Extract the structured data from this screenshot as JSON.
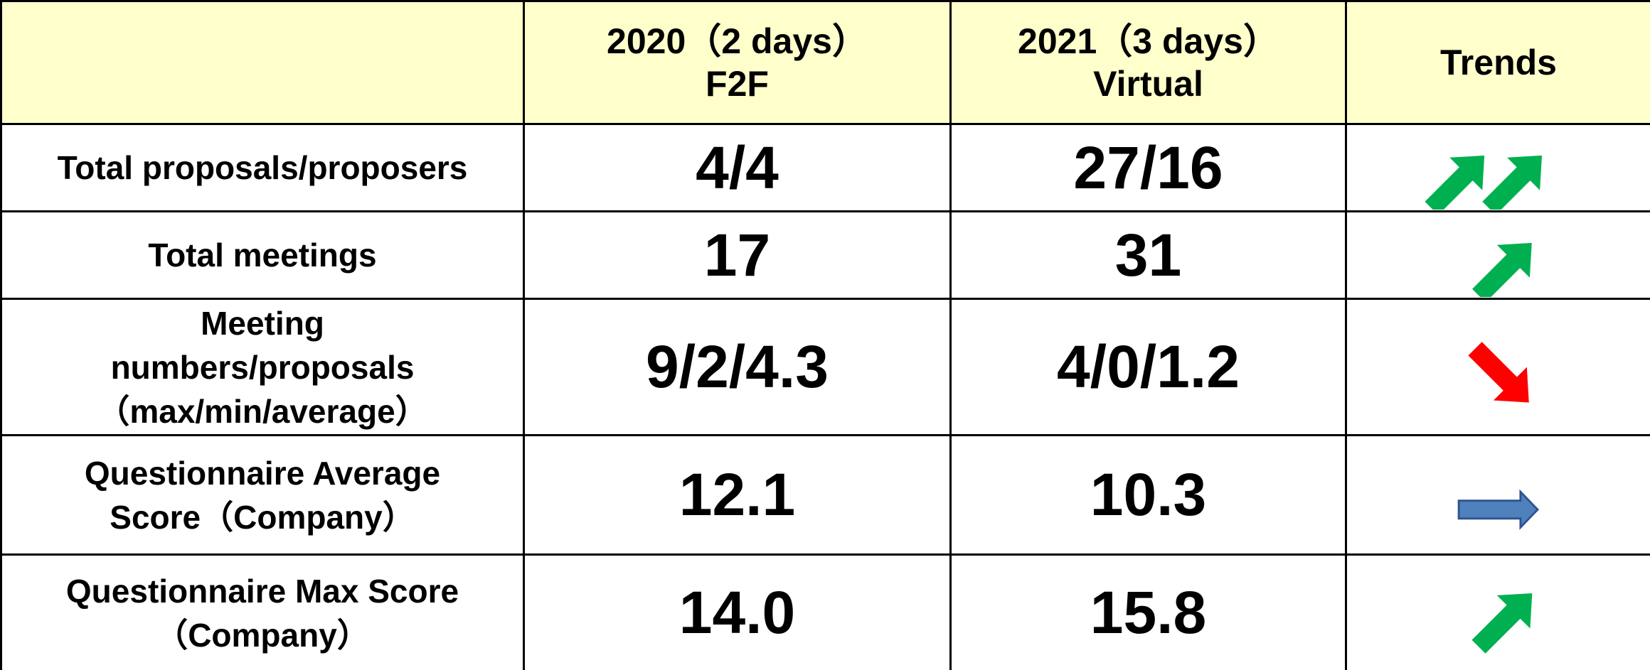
{
  "table": {
    "columns": [
      {
        "lines": [
          "2020（2 days）",
          "F2F"
        ]
      },
      {
        "lines": [
          "2021（3 days）",
          "Virtual"
        ]
      },
      {
        "lines": [
          "Trends"
        ]
      }
    ],
    "rows": [
      {
        "label": [
          "Total proposals/proposers"
        ],
        "values": [
          "4/4",
          "27/16"
        ]
      },
      {
        "label": [
          "Total meetings"
        ],
        "values": [
          "17",
          "31"
        ]
      },
      {
        "label": [
          "Meeting",
          "numbers/proposals",
          "（max/min/average）"
        ],
        "values": [
          "9/2/4.3",
          "4/0/1.2"
        ]
      },
      {
        "label": [
          "Questionnaire Average",
          "Score（Company）"
        ],
        "values": [
          "12.1",
          "10.3"
        ]
      },
      {
        "label": [
          "Questionnaire Max Score",
          "（Company）"
        ],
        "values": [
          "14.0",
          "15.8"
        ]
      }
    ]
  }
}
